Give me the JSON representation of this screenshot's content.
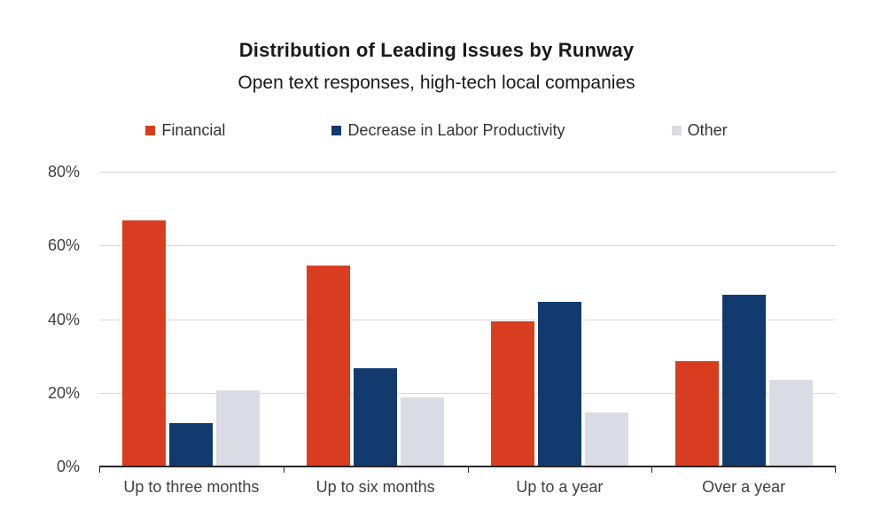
{
  "chart_data": {
    "type": "bar",
    "title": "Distribution of Leading Issues by Runway",
    "subtitle": "Open text responses, high-tech local companies",
    "categories": [
      "Up to three months",
      "Up to six months",
      "Up to a year",
      "Over a year"
    ],
    "series": [
      {
        "name": "Financial",
        "color": "#D93D1F",
        "values": [
          66.7,
          54.6,
          39.5,
          28.6
        ]
      },
      {
        "name": "Decrease in Labor Productivity",
        "color": "#123A6F",
        "values": [
          11.8,
          26.7,
          44.6,
          46.7
        ]
      },
      {
        "name": "Other",
        "color": "#DBDBE5",
        "values": [
          20.7,
          18.7,
          14.6,
          23.6
        ]
      }
    ],
    "xlabel": "",
    "ylabel": "",
    "ylim": [
      0,
      80
    ],
    "yticks": [
      "0%",
      "20%",
      "40%",
      "60%",
      "80%"
    ],
    "grid": true,
    "legend_position": "top",
    "colors": {
      "grid": "#d8d8d8",
      "axis": "#262626",
      "tick_label": "#404040",
      "title_text": "#1a1a1a",
      "legend_text": "#333333",
      "background": "#ffffff"
    }
  }
}
